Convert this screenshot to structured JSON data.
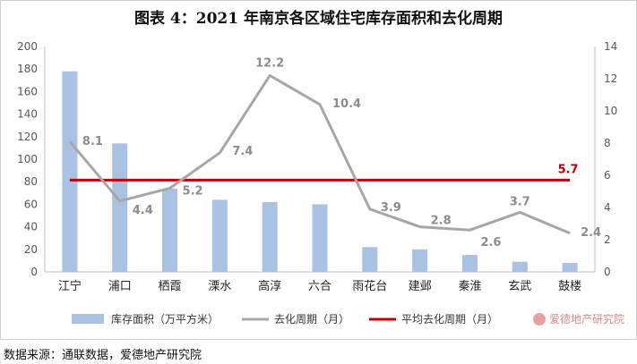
{
  "chart_data": {
    "type": "bar",
    "title": "图表 4：2021 年南京各区域住宅库存面积和去化周期",
    "categories": [
      "江宁",
      "浦口",
      "栖霞",
      "溧水",
      "高淳",
      "六合",
      "雨花台",
      "建邺",
      "秦淮",
      "玄武",
      "鼓楼"
    ],
    "series": [
      {
        "name": "库存面积（万平方米）",
        "type": "bar",
        "axis": "left",
        "color": "#a9c1e3",
        "values": [
          178,
          114,
          74,
          64,
          62,
          60,
          22,
          20,
          15,
          9,
          8
        ]
      },
      {
        "name": "去化周期（月）",
        "type": "line",
        "axis": "right",
        "color": "#a6a6a6",
        "values": [
          8.1,
          4.4,
          5.2,
          7.4,
          12.2,
          10.4,
          3.9,
          2.8,
          2.6,
          3.7,
          2.4
        ],
        "labels": [
          "8.1",
          "4.4",
          "5.2",
          "7.4",
          "12.2",
          "10.4",
          "3.9",
          "2.8",
          "2.6",
          "3.7",
          "2.4"
        ]
      },
      {
        "name": "平均去化周期（月）",
        "type": "line",
        "axis": "right",
        "color": "#c00000",
        "values": [
          5.7,
          5.7,
          5.7,
          5.7,
          5.7,
          5.7,
          5.7,
          5.7,
          5.7,
          5.7,
          5.7
        ],
        "end_label": "5.7"
      }
    ],
    "y_left": {
      "min": 0,
      "max": 200,
      "step": 20,
      "tick_labels": [
        "0",
        "20",
        "40",
        "60",
        "80",
        "100",
        "120",
        "140",
        "160",
        "180",
        "200"
      ]
    },
    "y_right": {
      "min": 0,
      "max": 14,
      "step": 2,
      "tick_labels": [
        "0",
        "2",
        "4",
        "6",
        "8",
        "10",
        "12",
        "14"
      ]
    },
    "grid": false,
    "legend_position": "bottom"
  },
  "watermark_text": "爱德地产研究院",
  "source_note": "数据来源：通联数据，爱德地产研究院"
}
